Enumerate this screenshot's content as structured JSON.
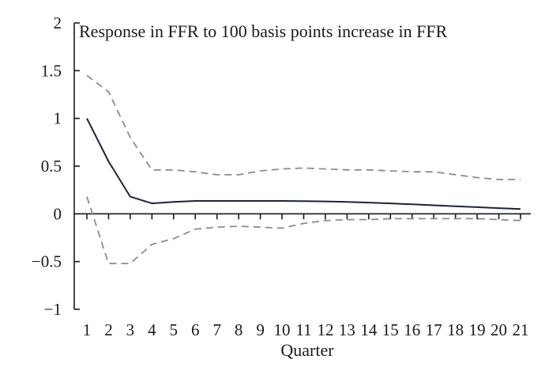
{
  "chart_data": {
    "type": "line",
    "title": "Response in FFR to 100 basis points increase in FFR",
    "xlabel": "Quarter",
    "ylabel": "",
    "x": [
      1,
      2,
      3,
      4,
      5,
      6,
      7,
      8,
      9,
      10,
      11,
      12,
      13,
      14,
      15,
      16,
      17,
      18,
      19,
      20,
      21
    ],
    "x_tick_labels": [
      "1",
      "2",
      "3",
      "4",
      "5",
      "6",
      "7",
      "8",
      "9",
      "10",
      "11",
      "12",
      "13",
      "14",
      "15",
      "16",
      "17",
      "18",
      "19",
      "20",
      "21"
    ],
    "y_tick_values": [
      2,
      1.5,
      1,
      0.5,
      0,
      -0.5,
      -1
    ],
    "y_tick_labels": [
      "2",
      "1.5",
      "1",
      "0.5",
      "0",
      "−0.5",
      "−1"
    ],
    "ylim": [
      -1,
      2
    ],
    "grid": false,
    "legend": "none",
    "series": [
      {
        "role": "point-estimate",
        "style": "solid",
        "color": "#1c2340",
        "values": [
          1.0,
          0.55,
          0.18,
          0.11,
          0.125,
          0.135,
          0.135,
          0.135,
          0.135,
          0.135,
          0.133,
          0.13,
          0.125,
          0.118,
          0.11,
          0.1,
          0.09,
          0.08,
          0.07,
          0.06,
          0.05
        ]
      },
      {
        "role": "upper-band",
        "style": "dashed",
        "color": "#8c8c8c",
        "values": [
          1.45,
          1.28,
          0.8,
          0.46,
          0.46,
          0.44,
          0.41,
          0.41,
          0.45,
          0.47,
          0.48,
          0.47,
          0.46,
          0.46,
          0.45,
          0.44,
          0.44,
          0.41,
          0.38,
          0.36,
          0.36
        ]
      },
      {
        "role": "lower-band",
        "style": "dashed",
        "color": "#8c8c8c",
        "values": [
          0.18,
          -0.52,
          -0.52,
          -0.32,
          -0.26,
          -0.16,
          -0.14,
          -0.13,
          -0.14,
          -0.15,
          -0.1,
          -0.07,
          -0.06,
          -0.06,
          -0.05,
          -0.05,
          -0.05,
          -0.05,
          -0.05,
          -0.06,
          -0.07
        ]
      }
    ]
  }
}
